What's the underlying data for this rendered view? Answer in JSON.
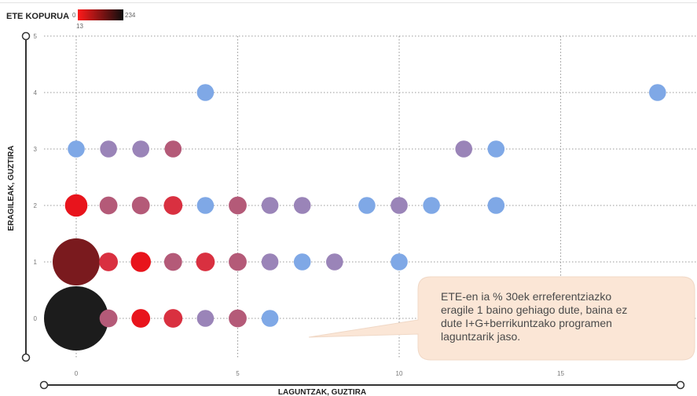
{
  "chart_data": {
    "type": "scatter",
    "title": "",
    "xlabel": "LAGUNTZAK, GUZTIRA",
    "ylabel": "ERAGILEAK, GUZTIRA",
    "xlim": [
      -1,
      19
    ],
    "ylim": [
      -0.65,
      5
    ],
    "x_ticks": [
      0,
      5,
      10,
      15
    ],
    "y_ticks": [
      0,
      1,
      2,
      3,
      4,
      5
    ],
    "grid": true,
    "legend": {
      "title": "ETE KOPURUA",
      "min_label": "0",
      "max_label": "234",
      "extra_label": "13",
      "color_low": "#ff1a1a",
      "color_high": "#0d0d0d"
    },
    "size_and_color_by": "ETE KOPURUA",
    "bubble_colors": {
      "black": "#1c1c1c",
      "darkred": "#7a1a1e",
      "red": "#e8141c",
      "crimson": "#d93040",
      "mauve": "#b45a78",
      "purple": "#9a84b8",
      "blue": "#7fa8e6"
    },
    "points": [
      {
        "x": 0,
        "y": 0,
        "count": 234,
        "color": "black"
      },
      {
        "x": 1,
        "y": 0,
        "count": 5,
        "color": "mauve"
      },
      {
        "x": 2,
        "y": 0,
        "count": 6,
        "color": "red"
      },
      {
        "x": 3,
        "y": 0,
        "count": 6,
        "color": "crimson"
      },
      {
        "x": 4,
        "y": 0,
        "count": 4,
        "color": "purple"
      },
      {
        "x": 5,
        "y": 0,
        "count": 5,
        "color": "mauve"
      },
      {
        "x": 6,
        "y": 0,
        "count": 4,
        "color": "blue"
      },
      {
        "x": 0,
        "y": 1,
        "count": 120,
        "color": "darkred"
      },
      {
        "x": 1,
        "y": 1,
        "count": 6,
        "color": "crimson"
      },
      {
        "x": 2,
        "y": 1,
        "count": 8,
        "color": "red"
      },
      {
        "x": 3,
        "y": 1,
        "count": 5,
        "color": "mauve"
      },
      {
        "x": 4,
        "y": 1,
        "count": 6,
        "color": "crimson"
      },
      {
        "x": 5,
        "y": 1,
        "count": 5,
        "color": "mauve"
      },
      {
        "x": 6,
        "y": 1,
        "count": 4,
        "color": "purple"
      },
      {
        "x": 7,
        "y": 1,
        "count": 4,
        "color": "blue"
      },
      {
        "x": 8,
        "y": 1,
        "count": 4,
        "color": "purple"
      },
      {
        "x": 10,
        "y": 1,
        "count": 4,
        "color": "blue"
      },
      {
        "x": 0,
        "y": 2,
        "count": 12,
        "color": "red"
      },
      {
        "x": 1,
        "y": 2,
        "count": 5,
        "color": "mauve"
      },
      {
        "x": 2,
        "y": 2,
        "count": 5,
        "color": "mauve"
      },
      {
        "x": 3,
        "y": 2,
        "count": 6,
        "color": "crimson"
      },
      {
        "x": 4,
        "y": 2,
        "count": 4,
        "color": "blue"
      },
      {
        "x": 5,
        "y": 2,
        "count": 5,
        "color": "mauve"
      },
      {
        "x": 6,
        "y": 2,
        "count": 4,
        "color": "purple"
      },
      {
        "x": 7,
        "y": 2,
        "count": 4,
        "color": "purple"
      },
      {
        "x": 9,
        "y": 2,
        "count": 4,
        "color": "blue"
      },
      {
        "x": 10,
        "y": 2,
        "count": 4,
        "color": "purple"
      },
      {
        "x": 11,
        "y": 2,
        "count": 4,
        "color": "blue"
      },
      {
        "x": 13,
        "y": 2,
        "count": 4,
        "color": "blue"
      },
      {
        "x": 0,
        "y": 3,
        "count": 4,
        "color": "blue"
      },
      {
        "x": 1,
        "y": 3,
        "count": 4,
        "color": "purple"
      },
      {
        "x": 2,
        "y": 3,
        "count": 4,
        "color": "purple"
      },
      {
        "x": 3,
        "y": 3,
        "count": 4,
        "color": "mauve"
      },
      {
        "x": 12,
        "y": 3,
        "count": 4,
        "color": "purple"
      },
      {
        "x": 13,
        "y": 3,
        "count": 4,
        "color": "blue"
      },
      {
        "x": 4,
        "y": 4,
        "count": 4,
        "color": "blue"
      },
      {
        "x": 18,
        "y": 4,
        "count": 4,
        "color": "blue"
      }
    ],
    "annotations": [
      {
        "text": "ETE-en ia % 30ek erreferentziazko eragile 1 baino gehiago dute, baina ez dute I+G+berrikuntzako programen laguntzarik jaso."
      }
    ]
  },
  "callout": {
    "lines": [
      "ETE-en ia % 30ek erreferentziazko",
      "eragile 1 baino gehiago dute, baina ez",
      "dute I+G+berrikuntzako programen",
      "laguntzarik jaso."
    ],
    "fill": "#fbe6d6"
  }
}
